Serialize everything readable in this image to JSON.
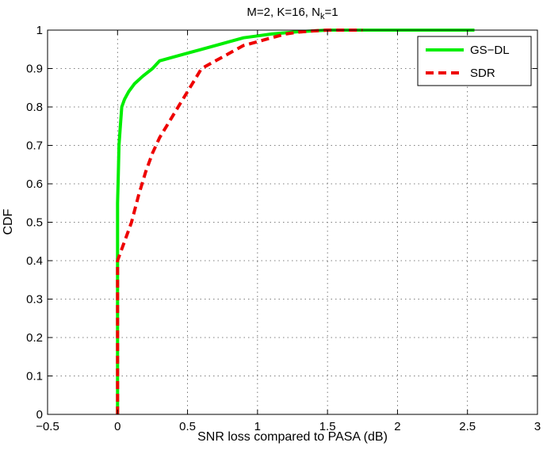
{
  "chart_data": {
    "type": "line",
    "title_main": "M=2, K=16, N",
    "title_sub": "k",
    "title_tail": "=1",
    "xlabel": "SNR loss compared to PASA (dB)",
    "ylabel": "CDF",
    "xlim": [
      -0.5,
      3
    ],
    "ylim": [
      0,
      1
    ],
    "xticks": [
      -0.5,
      0,
      0.5,
      1,
      1.5,
      2,
      2.5,
      3
    ],
    "xtick_labels": [
      "−0.5",
      "0",
      "0.5",
      "1",
      "1.5",
      "2",
      "2.5",
      "3"
    ],
    "yticks": [
      0,
      0.1,
      0.2,
      0.3,
      0.4,
      0.5,
      0.6,
      0.7,
      0.8,
      0.9,
      1
    ],
    "ytick_labels": [
      "0",
      "0.1",
      "0.2",
      "0.3",
      "0.4",
      "0.5",
      "0.6",
      "0.7",
      "0.8",
      "0.9",
      "1"
    ],
    "grid": true,
    "legend_position": "top-right",
    "series": [
      {
        "name": "GS−DL",
        "color": "#00ee00",
        "style": "solid",
        "points": [
          [
            0,
            0
          ],
          [
            0,
            0.55
          ],
          [
            0.005,
            0.62
          ],
          [
            0.01,
            0.7
          ],
          [
            0.02,
            0.75
          ],
          [
            0.03,
            0.8
          ],
          [
            0.05,
            0.82
          ],
          [
            0.08,
            0.84
          ],
          [
            0.12,
            0.86
          ],
          [
            0.18,
            0.88
          ],
          [
            0.25,
            0.9
          ],
          [
            0.3,
            0.92
          ],
          [
            0.4,
            0.93
          ],
          [
            0.5,
            0.94
          ],
          [
            0.6,
            0.95
          ],
          [
            0.7,
            0.96
          ],
          [
            0.8,
            0.97
          ],
          [
            0.9,
            0.98
          ],
          [
            1.0,
            0.985
          ],
          [
            1.1,
            0.99
          ],
          [
            1.2,
            0.993
          ],
          [
            1.3,
            0.996
          ],
          [
            1.4,
            0.998
          ],
          [
            1.5,
            1.0
          ],
          [
            2.0,
            1.0
          ],
          [
            2.55,
            1.0
          ]
        ]
      },
      {
        "name": "SDR",
        "color": "#ee0000",
        "style": "dashed",
        "points": [
          [
            0,
            0
          ],
          [
            0,
            0.4
          ],
          [
            0.02,
            0.42
          ],
          [
            0.05,
            0.45
          ],
          [
            0.1,
            0.5
          ],
          [
            0.15,
            0.57
          ],
          [
            0.2,
            0.63
          ],
          [
            0.25,
            0.68
          ],
          [
            0.3,
            0.72
          ],
          [
            0.35,
            0.75
          ],
          [
            0.4,
            0.78
          ],
          [
            0.45,
            0.81
          ],
          [
            0.5,
            0.84
          ],
          [
            0.55,
            0.87
          ],
          [
            0.6,
            0.9
          ],
          [
            0.7,
            0.92
          ],
          [
            0.8,
            0.94
          ],
          [
            0.9,
            0.96
          ],
          [
            1.0,
            0.97
          ],
          [
            1.1,
            0.98
          ],
          [
            1.2,
            0.99
          ],
          [
            1.3,
            0.995
          ],
          [
            1.4,
            0.998
          ],
          [
            1.5,
            1.0
          ],
          [
            1.75,
            1.0
          ]
        ]
      }
    ]
  }
}
